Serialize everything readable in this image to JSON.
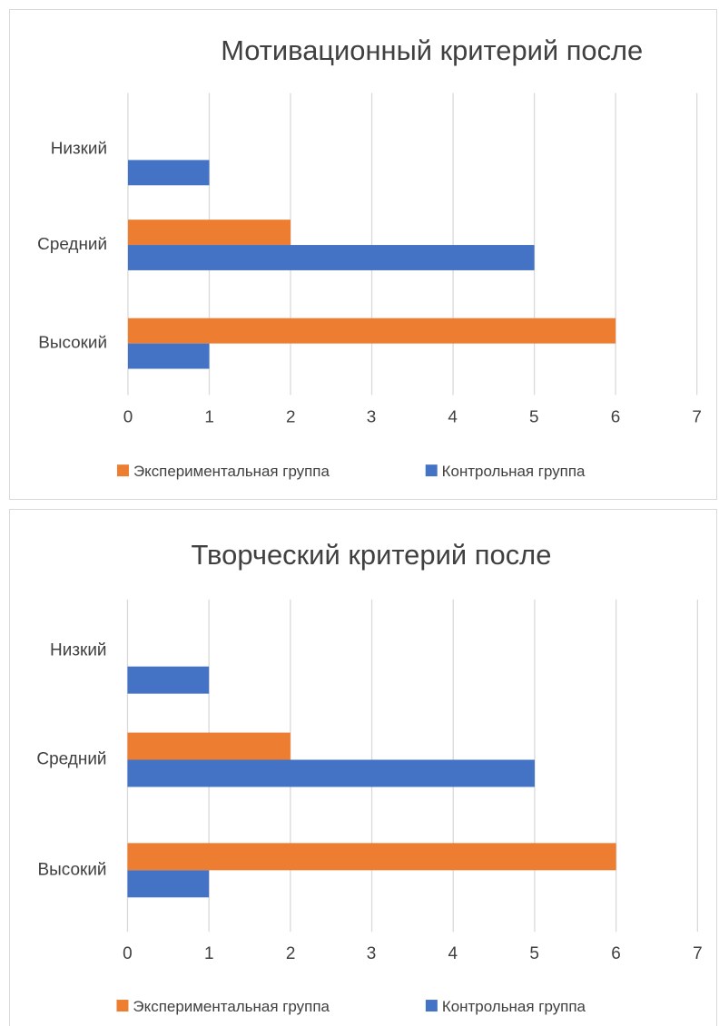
{
  "colors": {
    "series_experimental": "#ED7D31",
    "series_control": "#4472C4"
  },
  "chart_data": [
    {
      "type": "bar",
      "orientation": "horizontal",
      "title": "Мотивационный критерий после",
      "categories": [
        "Низкий",
        "Средний",
        "Высокий"
      ],
      "series": [
        {
          "name": "Экспериментальная группа",
          "values": [
            0,
            2,
            6
          ]
        },
        {
          "name": "Контрольная группа",
          "values": [
            1,
            5,
            1
          ]
        }
      ],
      "xlim": [
        0,
        7
      ],
      "xticks": [
        "0",
        "1",
        "2",
        "3",
        "4",
        "5",
        "6",
        "7"
      ],
      "grid": true,
      "legend_position": "bottom"
    },
    {
      "type": "bar",
      "orientation": "horizontal",
      "title": "Творческий критерий после",
      "categories": [
        "Низкий",
        "Средний",
        "Высокий"
      ],
      "series": [
        {
          "name": "Экспериментальная группа",
          "values": [
            0,
            2,
            6
          ]
        },
        {
          "name": "Контрольная группа",
          "values": [
            1,
            5,
            1
          ]
        }
      ],
      "xlim": [
        0,
        7
      ],
      "xticks": [
        "0",
        "1",
        "2",
        "3",
        "4",
        "5",
        "6",
        "7"
      ],
      "grid": true,
      "legend_position": "bottom"
    }
  ]
}
